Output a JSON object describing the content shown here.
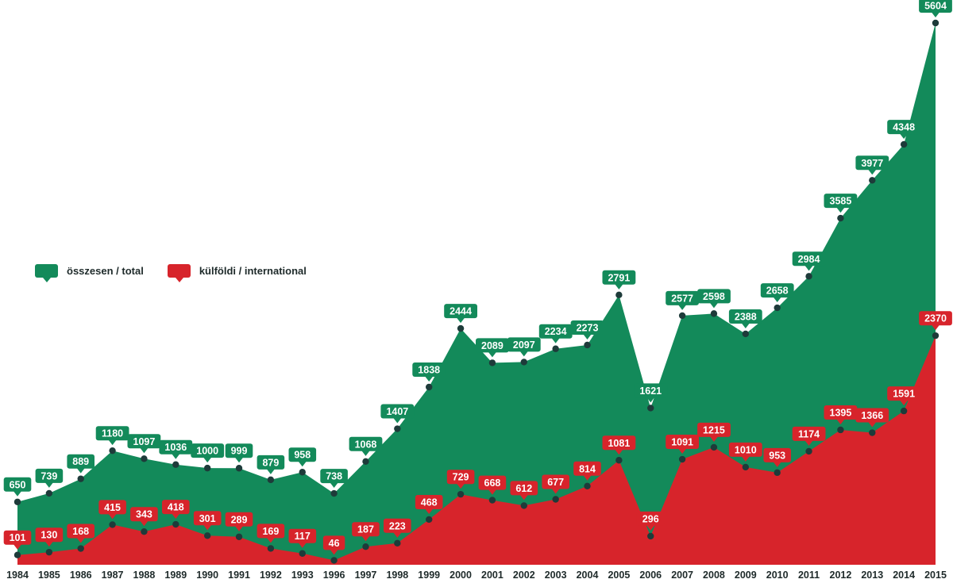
{
  "chart_data": {
    "type": "area",
    "categories": [
      "1984",
      "1985",
      "1986",
      "1987",
      "1988",
      "1989",
      "1990",
      "1991",
      "1992",
      "1993",
      "1996",
      "1997",
      "1998",
      "1999",
      "2000",
      "2001",
      "2002",
      "2003",
      "2004",
      "2005",
      "2006",
      "2007",
      "2008",
      "2009",
      "2010",
      "2011",
      "2012",
      "2013",
      "2014",
      "2015"
    ],
    "series": [
      {
        "name": "összesen / total",
        "color": "#138a5a",
        "values": [
          650,
          739,
          889,
          1180,
          1097,
          1036,
          1000,
          999,
          879,
          958,
          738,
          1068,
          1407,
          1838,
          2444,
          2089,
          2097,
          2234,
          2273,
          2791,
          1621,
          2577,
          2598,
          2388,
          2658,
          2984,
          3585,
          3977,
          4348,
          5604
        ]
      },
      {
        "name": "külföldi / international",
        "color": "#d7242b",
        "values": [
          101,
          130,
          168,
          415,
          343,
          418,
          301,
          289,
          169,
          117,
          46,
          187,
          223,
          468,
          729,
          668,
          612,
          677,
          814,
          1081,
          296,
          1091,
          1215,
          1010,
          953,
          1174,
          1395,
          1366,
          1591,
          2370
        ]
      }
    ],
    "ylim": [
      0,
      5604
    ],
    "legend_position": "left-middle",
    "grid": false,
    "data_labels": true
  }
}
